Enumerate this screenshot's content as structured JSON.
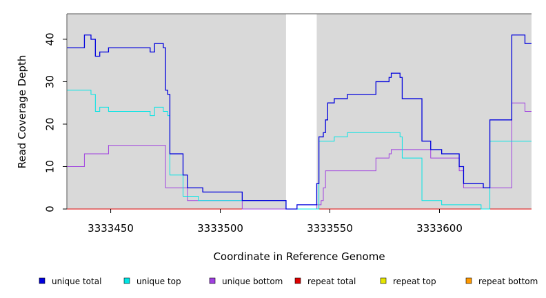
{
  "chart_data": {
    "type": "line",
    "step": true,
    "xlabel": "Coordinate in Reference Genome",
    "ylabel": "Read Coverage Depth",
    "xlim": [
      3333430,
      3333642
    ],
    "ylim": [
      0,
      46
    ],
    "xticks": [
      3333450,
      3333500,
      3333550,
      3333600
    ],
    "xtick_labels": [
      "3333450",
      "3333500",
      "3333550",
      "3333600"
    ],
    "yticks": [
      0,
      10,
      20,
      30,
      40
    ],
    "ytick_labels": [
      "0",
      "10",
      "20",
      "30",
      "40"
    ],
    "shaded_regions": [
      {
        "x0": 3333430,
        "x1": 3333530,
        "color": "#d9d9d9"
      },
      {
        "x0": 3333544,
        "x1": 3333642,
        "color": "#d9d9d9"
      }
    ],
    "legend_placement": "bottom",
    "series": [
      {
        "name": "unique total",
        "color": "#0000dd",
        "points": [
          [
            3333430,
            38
          ],
          [
            3333438,
            41
          ],
          [
            3333441,
            40
          ],
          [
            3333443,
            36
          ],
          [
            3333445,
            37
          ],
          [
            3333449,
            38
          ],
          [
            3333468,
            37
          ],
          [
            3333470,
            39
          ],
          [
            3333474,
            38
          ],
          [
            3333475,
            28
          ],
          [
            3333476,
            27
          ],
          [
            3333477,
            13
          ],
          [
            3333483,
            8
          ],
          [
            3333485,
            5
          ],
          [
            3333492,
            4
          ],
          [
            3333510,
            2
          ],
          [
            3333530,
            0
          ],
          [
            3333535,
            1
          ],
          [
            3333544,
            6
          ],
          [
            3333545,
            17
          ],
          [
            3333547,
            18
          ],
          [
            3333548,
            21
          ],
          [
            3333549,
            25
          ],
          [
            3333552,
            26
          ],
          [
            3333558,
            27
          ],
          [
            3333571,
            30
          ],
          [
            3333577,
            31
          ],
          [
            3333578,
            32
          ],
          [
            3333582,
            31
          ],
          [
            3333583,
            26
          ],
          [
            3333592,
            16
          ],
          [
            3333596,
            14
          ],
          [
            3333601,
            13
          ],
          [
            3333609,
            10
          ],
          [
            3333611,
            6
          ],
          [
            3333620,
            5
          ],
          [
            3333623,
            21
          ],
          [
            3333633,
            41
          ],
          [
            3333639,
            39
          ],
          [
            3333642,
            39
          ]
        ]
      },
      {
        "name": "unique top",
        "color": "#00e5e5",
        "points": [
          [
            3333430,
            28
          ],
          [
            3333441,
            27
          ],
          [
            3333443,
            23
          ],
          [
            3333445,
            24
          ],
          [
            3333449,
            23
          ],
          [
            3333468,
            22
          ],
          [
            3333470,
            24
          ],
          [
            3333474,
            23
          ],
          [
            3333476,
            22
          ],
          [
            3333477,
            8
          ],
          [
            3333483,
            3
          ],
          [
            3333485,
            3
          ],
          [
            3333490,
            2
          ],
          [
            3333510,
            2
          ],
          [
            3333530,
            0
          ],
          [
            3333544,
            0
          ],
          [
            3333545,
            16
          ],
          [
            3333552,
            17
          ],
          [
            3333558,
            18
          ],
          [
            3333582,
            17
          ],
          [
            3333583,
            12
          ],
          [
            3333592,
            2
          ],
          [
            3333601,
            1
          ],
          [
            3333619,
            0
          ],
          [
            3333623,
            16
          ],
          [
            3333642,
            16
          ]
        ]
      },
      {
        "name": "unique bottom",
        "color": "#a040e0",
        "points": [
          [
            3333430,
            10
          ],
          [
            3333438,
            13
          ],
          [
            3333449,
            15
          ],
          [
            3333475,
            5
          ],
          [
            3333485,
            2
          ],
          [
            3333510,
            0
          ],
          [
            3333544,
            1
          ],
          [
            3333546,
            2
          ],
          [
            3333547,
            5
          ],
          [
            3333548,
            9
          ],
          [
            3333571,
            12
          ],
          [
            3333577,
            13
          ],
          [
            3333578,
            14
          ],
          [
            3333596,
            12
          ],
          [
            3333609,
            9
          ],
          [
            3333611,
            5
          ],
          [
            3333633,
            25
          ],
          [
            3333639,
            23
          ],
          [
            3333642,
            23
          ]
        ]
      },
      {
        "name": "repeat total",
        "color": "#dd0000",
        "points": [
          [
            3333430,
            0
          ],
          [
            3333642,
            0
          ]
        ]
      },
      {
        "name": "repeat top",
        "color": "#e5e500",
        "points": [
          [
            3333430,
            0
          ],
          [
            3333642,
            0
          ]
        ]
      },
      {
        "name": "repeat bottom",
        "color": "#ff9900",
        "points": [
          [
            3333430,
            0
          ],
          [
            3333642,
            0
          ]
        ]
      }
    ]
  }
}
